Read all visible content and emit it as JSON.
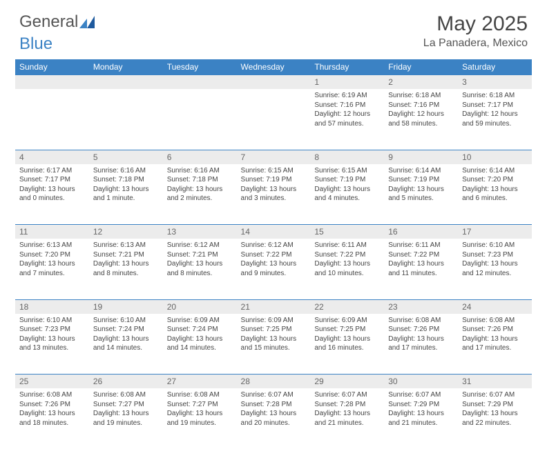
{
  "brand": {
    "text1": "General",
    "text2": "Blue"
  },
  "title": "May 2025",
  "location": "La Panadera, Mexico",
  "colors": {
    "header_bg": "#3b82c4",
    "header_text": "#ffffff",
    "daynum_bg": "#ececec",
    "daynum_text": "#666666",
    "body_text": "#444444",
    "rule": "#3b82c4",
    "page_bg": "#ffffff"
  },
  "day_headers": [
    "Sunday",
    "Monday",
    "Tuesday",
    "Wednesday",
    "Thursday",
    "Friday",
    "Saturday"
  ],
  "weeks": [
    {
      "nums": [
        "",
        "",
        "",
        "",
        "1",
        "2",
        "3"
      ],
      "cells": [
        null,
        null,
        null,
        null,
        {
          "sunrise": "Sunrise: 6:19 AM",
          "sunset": "Sunset: 7:16 PM",
          "day1": "Daylight: 12 hours",
          "day2": "and 57 minutes."
        },
        {
          "sunrise": "Sunrise: 6:18 AM",
          "sunset": "Sunset: 7:16 PM",
          "day1": "Daylight: 12 hours",
          "day2": "and 58 minutes."
        },
        {
          "sunrise": "Sunrise: 6:18 AM",
          "sunset": "Sunset: 7:17 PM",
          "day1": "Daylight: 12 hours",
          "day2": "and 59 minutes."
        }
      ]
    },
    {
      "nums": [
        "4",
        "5",
        "6",
        "7",
        "8",
        "9",
        "10"
      ],
      "cells": [
        {
          "sunrise": "Sunrise: 6:17 AM",
          "sunset": "Sunset: 7:17 PM",
          "day1": "Daylight: 13 hours",
          "day2": "and 0 minutes."
        },
        {
          "sunrise": "Sunrise: 6:16 AM",
          "sunset": "Sunset: 7:18 PM",
          "day1": "Daylight: 13 hours",
          "day2": "and 1 minute."
        },
        {
          "sunrise": "Sunrise: 6:16 AM",
          "sunset": "Sunset: 7:18 PM",
          "day1": "Daylight: 13 hours",
          "day2": "and 2 minutes."
        },
        {
          "sunrise": "Sunrise: 6:15 AM",
          "sunset": "Sunset: 7:19 PM",
          "day1": "Daylight: 13 hours",
          "day2": "and 3 minutes."
        },
        {
          "sunrise": "Sunrise: 6:15 AM",
          "sunset": "Sunset: 7:19 PM",
          "day1": "Daylight: 13 hours",
          "day2": "and 4 minutes."
        },
        {
          "sunrise": "Sunrise: 6:14 AM",
          "sunset": "Sunset: 7:19 PM",
          "day1": "Daylight: 13 hours",
          "day2": "and 5 minutes."
        },
        {
          "sunrise": "Sunrise: 6:14 AM",
          "sunset": "Sunset: 7:20 PM",
          "day1": "Daylight: 13 hours",
          "day2": "and 6 minutes."
        }
      ]
    },
    {
      "nums": [
        "11",
        "12",
        "13",
        "14",
        "15",
        "16",
        "17"
      ],
      "cells": [
        {
          "sunrise": "Sunrise: 6:13 AM",
          "sunset": "Sunset: 7:20 PM",
          "day1": "Daylight: 13 hours",
          "day2": "and 7 minutes."
        },
        {
          "sunrise": "Sunrise: 6:13 AM",
          "sunset": "Sunset: 7:21 PM",
          "day1": "Daylight: 13 hours",
          "day2": "and 8 minutes."
        },
        {
          "sunrise": "Sunrise: 6:12 AM",
          "sunset": "Sunset: 7:21 PM",
          "day1": "Daylight: 13 hours",
          "day2": "and 8 minutes."
        },
        {
          "sunrise": "Sunrise: 6:12 AM",
          "sunset": "Sunset: 7:22 PM",
          "day1": "Daylight: 13 hours",
          "day2": "and 9 minutes."
        },
        {
          "sunrise": "Sunrise: 6:11 AM",
          "sunset": "Sunset: 7:22 PM",
          "day1": "Daylight: 13 hours",
          "day2": "and 10 minutes."
        },
        {
          "sunrise": "Sunrise: 6:11 AM",
          "sunset": "Sunset: 7:22 PM",
          "day1": "Daylight: 13 hours",
          "day2": "and 11 minutes."
        },
        {
          "sunrise": "Sunrise: 6:10 AM",
          "sunset": "Sunset: 7:23 PM",
          "day1": "Daylight: 13 hours",
          "day2": "and 12 minutes."
        }
      ]
    },
    {
      "nums": [
        "18",
        "19",
        "20",
        "21",
        "22",
        "23",
        "24"
      ],
      "cells": [
        {
          "sunrise": "Sunrise: 6:10 AM",
          "sunset": "Sunset: 7:23 PM",
          "day1": "Daylight: 13 hours",
          "day2": "and 13 minutes."
        },
        {
          "sunrise": "Sunrise: 6:10 AM",
          "sunset": "Sunset: 7:24 PM",
          "day1": "Daylight: 13 hours",
          "day2": "and 14 minutes."
        },
        {
          "sunrise": "Sunrise: 6:09 AM",
          "sunset": "Sunset: 7:24 PM",
          "day1": "Daylight: 13 hours",
          "day2": "and 14 minutes."
        },
        {
          "sunrise": "Sunrise: 6:09 AM",
          "sunset": "Sunset: 7:25 PM",
          "day1": "Daylight: 13 hours",
          "day2": "and 15 minutes."
        },
        {
          "sunrise": "Sunrise: 6:09 AM",
          "sunset": "Sunset: 7:25 PM",
          "day1": "Daylight: 13 hours",
          "day2": "and 16 minutes."
        },
        {
          "sunrise": "Sunrise: 6:08 AM",
          "sunset": "Sunset: 7:26 PM",
          "day1": "Daylight: 13 hours",
          "day2": "and 17 minutes."
        },
        {
          "sunrise": "Sunrise: 6:08 AM",
          "sunset": "Sunset: 7:26 PM",
          "day1": "Daylight: 13 hours",
          "day2": "and 17 minutes."
        }
      ]
    },
    {
      "nums": [
        "25",
        "26",
        "27",
        "28",
        "29",
        "30",
        "31"
      ],
      "cells": [
        {
          "sunrise": "Sunrise: 6:08 AM",
          "sunset": "Sunset: 7:26 PM",
          "day1": "Daylight: 13 hours",
          "day2": "and 18 minutes."
        },
        {
          "sunrise": "Sunrise: 6:08 AM",
          "sunset": "Sunset: 7:27 PM",
          "day1": "Daylight: 13 hours",
          "day2": "and 19 minutes."
        },
        {
          "sunrise": "Sunrise: 6:08 AM",
          "sunset": "Sunset: 7:27 PM",
          "day1": "Daylight: 13 hours",
          "day2": "and 19 minutes."
        },
        {
          "sunrise": "Sunrise: 6:07 AM",
          "sunset": "Sunset: 7:28 PM",
          "day1": "Daylight: 13 hours",
          "day2": "and 20 minutes."
        },
        {
          "sunrise": "Sunrise: 6:07 AM",
          "sunset": "Sunset: 7:28 PM",
          "day1": "Daylight: 13 hours",
          "day2": "and 21 minutes."
        },
        {
          "sunrise": "Sunrise: 6:07 AM",
          "sunset": "Sunset: 7:29 PM",
          "day1": "Daylight: 13 hours",
          "day2": "and 21 minutes."
        },
        {
          "sunrise": "Sunrise: 6:07 AM",
          "sunset": "Sunset: 7:29 PM",
          "day1": "Daylight: 13 hours",
          "day2": "and 22 minutes."
        }
      ]
    }
  ]
}
